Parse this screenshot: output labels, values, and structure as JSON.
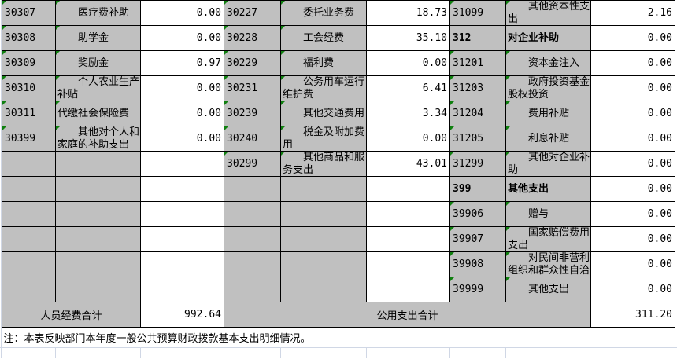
{
  "rows": [
    {
      "c1": "30307",
      "n1": "医疗费补助",
      "v1": "0.00",
      "c2": "30227",
      "n2": "委托业务费",
      "v2": "18.73",
      "c3": "31099",
      "n3": "其他资本性支出",
      "v3": "2.16"
    },
    {
      "c1": "30308",
      "n1": "助学金",
      "v1": "0.00",
      "c2": "30228",
      "n2": "工会经费",
      "v2": "35.10",
      "c3": "312",
      "n3": "对企业补助",
      "v3": "0.00",
      "bold3": true
    },
    {
      "c1": "30309",
      "n1": "奖励金",
      "v1": "0.97",
      "c2": "30229",
      "n2": "福利费",
      "v2": "0.00",
      "c3": "31201",
      "n3": "资本金注入",
      "v3": "0.00"
    },
    {
      "c1": "30310",
      "n1": "个人农业生产补贴",
      "v1": "0.00",
      "c2": "30231",
      "n2": "公务用车运行维护费",
      "v2": "6.41",
      "c3": "31203",
      "n3": "政府投资基金股权投资",
      "v3": "0.00"
    },
    {
      "c1": "30311",
      "n1": "代缴社会保险费",
      "v1": "0.00",
      "c2": "30239",
      "n2": "其他交通费用",
      "v2": "3.34",
      "c3": "31204",
      "n3": "费用补贴",
      "v3": "0.00",
      "noindent1": true
    },
    {
      "c1": "30399",
      "n1": "其他对个人和家庭的补助支出",
      "v1": "0.00",
      "c2": "30240",
      "n2": "税金及附加费用",
      "v2": "0.00",
      "c3": "31205",
      "n3": "利息补贴",
      "v3": "0.00"
    },
    {
      "c2": "30299",
      "n2": "其他商品和服务支出",
      "v2": "43.01",
      "c3": "31299",
      "n3": "其他对企业补助",
      "v3": "0.00"
    },
    {
      "c3": "399",
      "n3": "其他支出",
      "v3": "0.00",
      "bold3": true
    },
    {
      "c3": "39906",
      "n3": "赠与",
      "v3": "0.00"
    },
    {
      "c3": "39907",
      "n3": "国家赔偿费用支出",
      "v3": "0.00"
    },
    {
      "c3": "39908",
      "n3": "对民间非营利组织和群众性自治组织补贴",
      "v3": "0.00"
    },
    {
      "c3": "39999",
      "n3": "其他支出",
      "v3": "0.00"
    }
  ],
  "totals": {
    "personnel_label": "人员经费合计",
    "personnel_value": "992.64",
    "public_label": "公用支出合计",
    "public_value": "311.20"
  },
  "note": "注：本表反映部门本年度一般公共预算财政拨款基本支出明细情况。",
  "colors": {
    "cell_gray": "#c0c0c0",
    "comment_marker": "#108010"
  }
}
